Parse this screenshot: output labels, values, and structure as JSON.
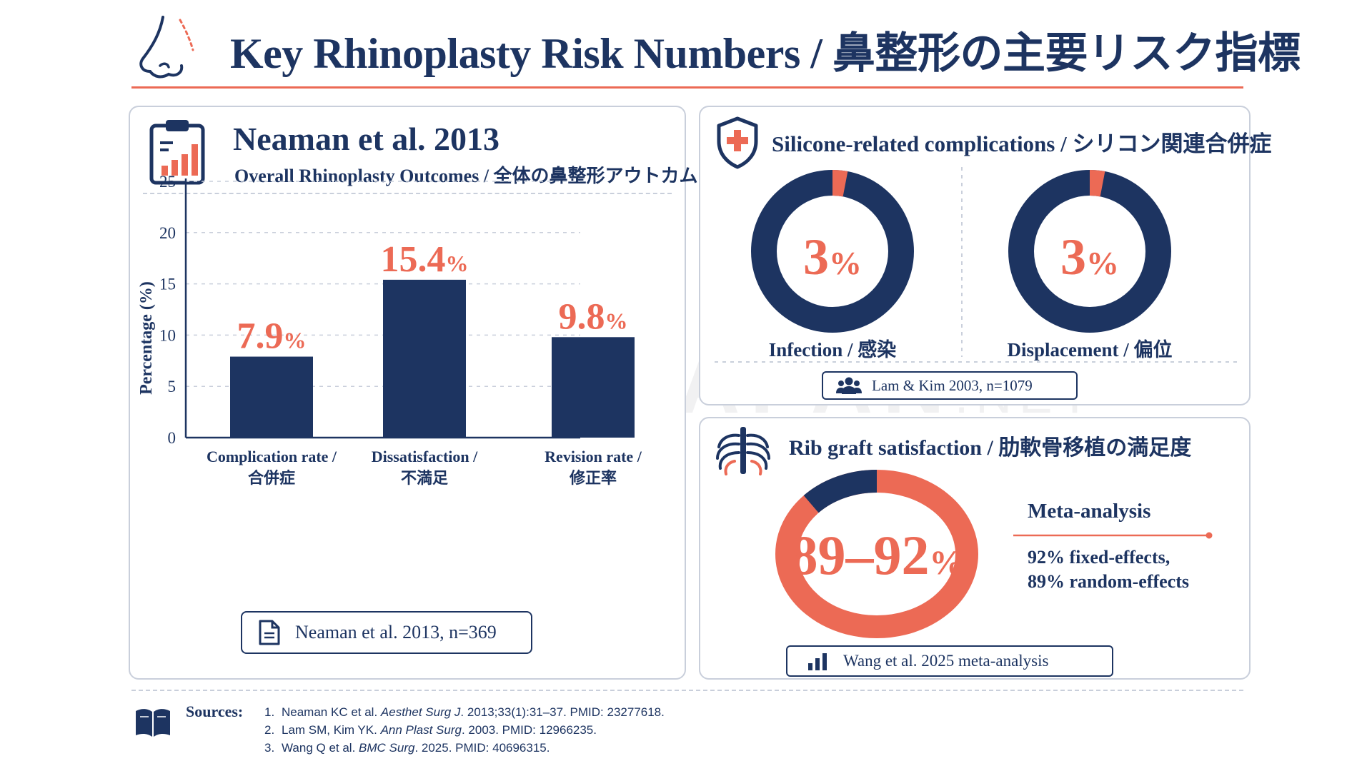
{
  "page": {
    "title": "Key Rhinoplasty Risk Numbers / 鼻整形の主要リスク指標",
    "watermark": {
      "left": "CLINIC",
      "plus": "+",
      "mid": "JAPAN",
      "suffix": ".NET"
    }
  },
  "colors": {
    "navy": "#1d3461",
    "coral": "#ec6a55",
    "grid": "#c9cfdb"
  },
  "icons": {
    "title": "nose-profile-icon",
    "left_card": "clipboard-chart-icon",
    "silicone_card": "medical-shield-icon",
    "rib_card": "ribcage-icon",
    "sources": "open-book-icon"
  },
  "neaman": {
    "title": "Neaman et al. 2013",
    "subtitle": "Overall Rhinoplasty Outcomes / 全体の鼻整形アウトカム",
    "reference": "Neaman et al. 2013, n=369"
  },
  "silicone": {
    "title": "Silicone-related complications / シリコン関連合併症",
    "reference": "Lam & Kim 2003, n=1079"
  },
  "rib": {
    "title": "Rib graft satisfaction / 肋軟骨移植の満足度",
    "meta_heading": "Meta-analysis",
    "meta_line1": "92% fixed-effects,",
    "meta_line2": "89% random-effects",
    "reference": "Wang et al. 2025 meta-analysis"
  },
  "sources": {
    "label": "Sources:",
    "items": [
      {
        "num": "1.",
        "pre": "Neaman KC et al. ",
        "journal": "Aesthet Surg J",
        "post": ". 2013;33(1):31–37. PMID: 23277618."
      },
      {
        "num": "2.",
        "pre": "Lam SM, Kim YK. ",
        "journal": "Ann Plast Surg",
        "post": ". 2003. PMID: 12966235."
      },
      {
        "num": "3.",
        "pre": "Wang Q et al. ",
        "journal": "BMC Surg",
        "post": ". 2025. PMID: 40696315."
      }
    ]
  },
  "chart_data": [
    {
      "type": "bar",
      "title": "Neaman et al. 2013",
      "ylabel": "Percentage (%)",
      "ylim": [
        0,
        25
      ],
      "yticks": [
        0,
        5,
        10,
        15,
        20,
        25
      ],
      "grid": true,
      "categories": [
        [
          "Complication rate /",
          "合併症"
        ],
        [
          "Dissatisfaction /",
          "不満足"
        ],
        [
          "Revision rate /",
          "修正率"
        ]
      ],
      "values": [
        7.9,
        15.4,
        9.8
      ],
      "value_labels": [
        "7.9",
        "15.4",
        "9.8"
      ],
      "unit": "%"
    },
    {
      "type": "pie",
      "donut": true,
      "label": "Infection / 感染",
      "value": 3,
      "value_label": "3",
      "unit": "%"
    },
    {
      "type": "pie",
      "donut": true,
      "label": "Displacement / 偏位",
      "value": 3,
      "value_label": "3",
      "unit": "%"
    },
    {
      "type": "pie",
      "donut": true,
      "range_min": 89,
      "range_max": 92,
      "value_label": "89–92",
      "unit": "%"
    }
  ]
}
